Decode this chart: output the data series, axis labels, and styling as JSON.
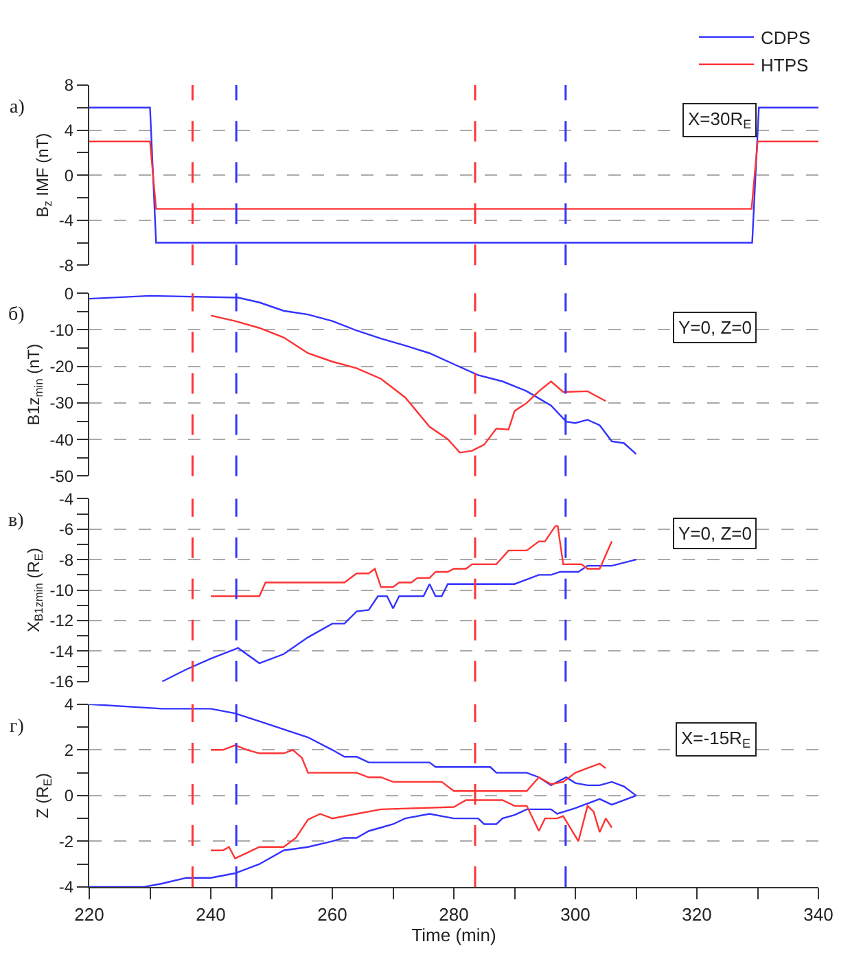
{
  "chart_data": [
    {
      "type": "line",
      "ylabel": "B$_{z}$ IMF (nT)",
      "xlim": [
        220,
        340
      ],
      "ylim": [
        -8,
        8
      ],
      "tick_labels": "y",
      "grid": "y",
      "legend": "top right",
      "yticks": [
        -8,
        {
          "value": -6,
          "label": null
        },
        -4,
        {
          "value": -2,
          "label": null
        },
        0,
        {
          "value": 2,
          "label": null
        },
        4,
        {
          "value": 6,
          "label": null
        },
        8
      ],
      "annotations": [
        "а)",
        "X=30R$_{E}$"
      ],
      "ref_lines": [
        {
          "axis": "x",
          "value": 237,
          "color": "#ff3333",
          "line_style": "dashed"
        },
        {
          "axis": "x",
          "value": 244.2,
          "color": "#3333ff",
          "line_style": "dashed"
        },
        {
          "axis": "x",
          "value": 283.5,
          "color": "#ff3333",
          "line_style": "dashed"
        },
        {
          "axis": "x",
          "value": 298.4,
          "color": "#3333ff",
          "line_style": "dashed"
        }
      ],
      "series": [
        {
          "name": "CDPS",
          "color": "#3333ff",
          "x": [
            220,
            230,
            231,
            329.1,
            330.2,
            340
          ],
          "values": [
            6,
            6,
            -6,
            -6,
            6,
            6
          ]
        },
        {
          "name": "HTPS",
          "color": "#ff3333",
          "x": [
            220,
            230,
            231,
            329,
            330,
            340
          ],
          "values": [
            3,
            3,
            -3,
            -3,
            3,
            3
          ]
        }
      ]
    },
    {
      "type": "line",
      "ylabel": "B1z$_{min}$ (nT)",
      "xlim": [
        220,
        340
      ],
      "ylim": [
        -50,
        0
      ],
      "tick_labels": "y",
      "grid": "y",
      "yticks": [
        -50,
        {
          "value": -45,
          "label": null
        },
        -40,
        {
          "value": -35,
          "label": null
        },
        -30,
        {
          "value": -25,
          "label": null
        },
        -20,
        {
          "value": -15,
          "label": null
        },
        -10,
        {
          "value": -5,
          "label": null
        },
        0
      ],
      "annotations": [
        "б)",
        "Y=0, Z=0"
      ],
      "ref_lines": [
        {
          "axis": "x",
          "value": 237,
          "color": "#ff3333",
          "line_style": "dashed"
        },
        {
          "axis": "x",
          "value": 244.2,
          "color": "#3333ff",
          "line_style": "dashed"
        },
        {
          "axis": "x",
          "value": 283.5,
          "color": "#ff3333",
          "line_style": "dashed"
        },
        {
          "axis": "x",
          "value": 298.4,
          "color": "#3333ff",
          "line_style": "dashed"
        }
      ],
      "series": [
        {
          "color": "#3333ff",
          "x": [
            220,
            230,
            244.5,
            248,
            252,
            256,
            260,
            264,
            268,
            272,
            276,
            280,
            284,
            288,
            292,
            296,
            298.5,
            300,
            302,
            304,
            306,
            308,
            310
          ],
          "values": [
            -1.5,
            -0.7,
            -1.2,
            -2.5,
            -4.8,
            -5.8,
            -7.6,
            -10.2,
            -12.4,
            -14.3,
            -16.4,
            -19.4,
            -22.4,
            -24.1,
            -26.8,
            -30.7,
            -35.1,
            -35.5,
            -34.6,
            -36.1,
            -40.5,
            -41,
            -44
          ]
        },
        {
          "color": "#ff3333",
          "x": [
            240,
            244,
            248,
            252,
            256,
            260,
            264,
            268,
            272,
            276,
            279,
            281,
            283,
            285,
            287,
            289,
            290,
            292,
            294,
            296,
            298,
            302,
            305
          ],
          "values": [
            -6.1,
            -7.6,
            -9.5,
            -12.1,
            -16.4,
            -18.7,
            -20.5,
            -23.4,
            -28.5,
            -36.5,
            -39.9,
            -43.6,
            -43.1,
            -41.4,
            -37,
            -37.3,
            -32.2,
            -30,
            -26.8,
            -24.1,
            -27,
            -26.8,
            -29.5
          ]
        }
      ]
    },
    {
      "type": "line",
      "ylabel": "X$_{B1zmin}$ (R$_{E}$)",
      "xlim": [
        220,
        340
      ],
      "ylim": [
        -16,
        -4
      ],
      "tick_labels": "y",
      "grid": "y",
      "yticks": [
        -16,
        {
          "value": -15,
          "label": null
        },
        -14,
        {
          "value": -13,
          "label": null
        },
        -12,
        {
          "value": -11,
          "label": null
        },
        -10,
        {
          "value": -9,
          "label": null
        },
        -8,
        {
          "value": -7,
          "label": null
        },
        -6,
        {
          "value": -5,
          "label": null
        },
        -4
      ],
      "annotations": [
        "в)",
        "Y=0, Z=0"
      ],
      "ref_lines": [
        {
          "axis": "x",
          "value": 237,
          "color": "#ff3333",
          "line_style": "dashed"
        },
        {
          "axis": "x",
          "value": 244.2,
          "color": "#3333ff",
          "line_style": "dashed"
        },
        {
          "axis": "x",
          "value": 283.5,
          "color": "#ff3333",
          "line_style": "dashed"
        },
        {
          "axis": "x",
          "value": 298.4,
          "color": "#3333ff",
          "line_style": "dashed"
        }
      ],
      "series": [
        {
          "color": "#3333ff",
          "x": [
            232,
            236,
            240,
            244.5,
            248,
            252,
            256,
            260,
            262,
            264,
            266,
            267.5,
            269,
            270,
            271,
            275,
            276,
            277,
            278,
            279,
            290,
            292,
            294,
            296,
            297.5,
            300.5,
            302,
            306,
            310
          ],
          "values": [
            -16,
            -15.2,
            -14.5,
            -13.8,
            -14.8,
            -14.2,
            -13.1,
            -12.2,
            -12.2,
            -11.4,
            -11.3,
            -10.4,
            -10.4,
            -11.2,
            -10.4,
            -10.4,
            -9.6,
            -10.4,
            -10.4,
            -9.6,
            -9.6,
            -9.3,
            -9,
            -9,
            -8.8,
            -8.8,
            -8.4,
            -8.4,
            -8
          ]
        },
        {
          "color": "#ff3333",
          "x": [
            240,
            248,
            249,
            262,
            264,
            266,
            267,
            268,
            270,
            271,
            273,
            274,
            276,
            277,
            279,
            280,
            282,
            283,
            287,
            289,
            292,
            294,
            295,
            296.7,
            297.1,
            298,
            301,
            302,
            304,
            306
          ],
          "values": [
            -10.4,
            -10.4,
            -9.5,
            -9.5,
            -8.9,
            -8.9,
            -8.6,
            -9.8,
            -9.8,
            -9.5,
            -9.5,
            -9.2,
            -9.2,
            -8.8,
            -8.8,
            -8.6,
            -8.6,
            -8.3,
            -8.3,
            -7.4,
            -7.4,
            -6.8,
            -6.8,
            -5.8,
            -5.8,
            -8.3,
            -8.3,
            -8.6,
            -8.6,
            -6.8
          ]
        }
      ]
    },
    {
      "type": "line",
      "xlabel": "Time (min)",
      "ylabel": "Z (R$_{E}$)",
      "xlim": [
        220,
        340
      ],
      "ylim": [
        -4,
        4
      ],
      "grid": "y",
      "xticks": [
        220,
        {
          "value": 230,
          "label": null
        },
        240,
        {
          "value": 250,
          "label": null
        },
        260,
        {
          "value": 270,
          "label": null
        },
        280,
        {
          "value": 290,
          "label": null
        },
        300,
        {
          "value": 310,
          "label": null
        },
        320,
        {
          "value": 330,
          "label": null
        },
        340
      ],
      "yticks": [
        -4,
        {
          "value": -3,
          "label": null
        },
        -2,
        {
          "value": -1,
          "label": null
        },
        0,
        {
          "value": 1,
          "label": null
        },
        2,
        {
          "value": 3,
          "label": null
        },
        4
      ],
      "annotations": [
        "г)",
        "X=-15R$_{E}$"
      ],
      "ref_lines": [
        {
          "axis": "x",
          "value": 237,
          "color": "#ff3333",
          "line_style": "dashed"
        },
        {
          "axis": "x",
          "value": 244.2,
          "color": "#3333ff",
          "line_style": "dashed"
        },
        {
          "axis": "x",
          "value": 283.5,
          "color": "#ff3333",
          "line_style": "dashed"
        },
        {
          "axis": "x",
          "value": 298.4,
          "color": "#3333ff",
          "line_style": "dashed"
        }
      ],
      "series": [
        {
          "color": "#3333ff",
          "x": [
            220,
            232,
            240,
            244,
            248,
            256,
            260,
            262,
            264,
            266,
            276,
            277,
            286,
            287,
            292,
            294,
            296,
            298.5,
            300,
            302,
            304,
            306,
            308,
            310
          ],
          "values": [
            4,
            3.8,
            3.8,
            3.6,
            3.25,
            2.55,
            2,
            1.7,
            1.7,
            1.45,
            1.45,
            1.25,
            1.25,
            1,
            1,
            0.8,
            0.45,
            0.8,
            0.55,
            0.45,
            0.45,
            0.6,
            0.4,
            0
          ]
        },
        {
          "color": "#3333ff",
          "x": [
            220,
            229,
            232,
            236,
            240,
            244,
            248,
            252,
            256,
            260,
            262,
            264,
            266,
            268,
            270,
            272,
            276,
            280,
            284,
            285,
            287,
            288,
            290,
            292,
            296,
            297,
            300,
            304,
            306,
            310
          ],
          "values": [
            -4,
            -4,
            -3.85,
            -3.6,
            -3.6,
            -3.4,
            -3,
            -2.4,
            -2.25,
            -2,
            -1.85,
            -1.85,
            -1.55,
            -1.4,
            -1.25,
            -1,
            -0.8,
            -1,
            -1,
            -1.25,
            -1.25,
            -1,
            -0.85,
            -0.6,
            -0.6,
            -0.8,
            -0.55,
            -0.15,
            -0.4,
            0
          ]
        },
        {
          "color": "#ff3333",
          "x": [
            240,
            242,
            244,
            246,
            248,
            252,
            253.5,
            255,
            256,
            264,
            266,
            268,
            270,
            278,
            280,
            292,
            294,
            296,
            298,
            300,
            302,
            304,
            305
          ],
          "values": [
            2,
            2,
            2.2,
            2,
            1.85,
            1.85,
            2,
            1.65,
            1,
            1,
            0.8,
            0.8,
            0.6,
            0.6,
            0.2,
            0.2,
            0.8,
            0.5,
            0.6,
            1,
            1.2,
            1.4,
            1.2
          ]
        },
        {
          "color": "#ff3333",
          "x": [
            240,
            242,
            243,
            244,
            246,
            248,
            252,
            254,
            256,
            258,
            260,
            264,
            268,
            280,
            282,
            288,
            290,
            292,
            294,
            295,
            297,
            298,
            300.5,
            302,
            303,
            304,
            305,
            306
          ],
          "values": [
            -2.4,
            -2.4,
            -2.25,
            -2.75,
            -2.5,
            -2.25,
            -2.25,
            -1.85,
            -1.05,
            -0.8,
            -1,
            -0.8,
            -0.6,
            -0.5,
            -0.2,
            -0.2,
            -0.45,
            -0.45,
            -1.55,
            -1,
            -1,
            -0.9,
            -2,
            -0.45,
            -0.7,
            -1.6,
            -1,
            -1.4
          ]
        }
      ]
    }
  ]
}
